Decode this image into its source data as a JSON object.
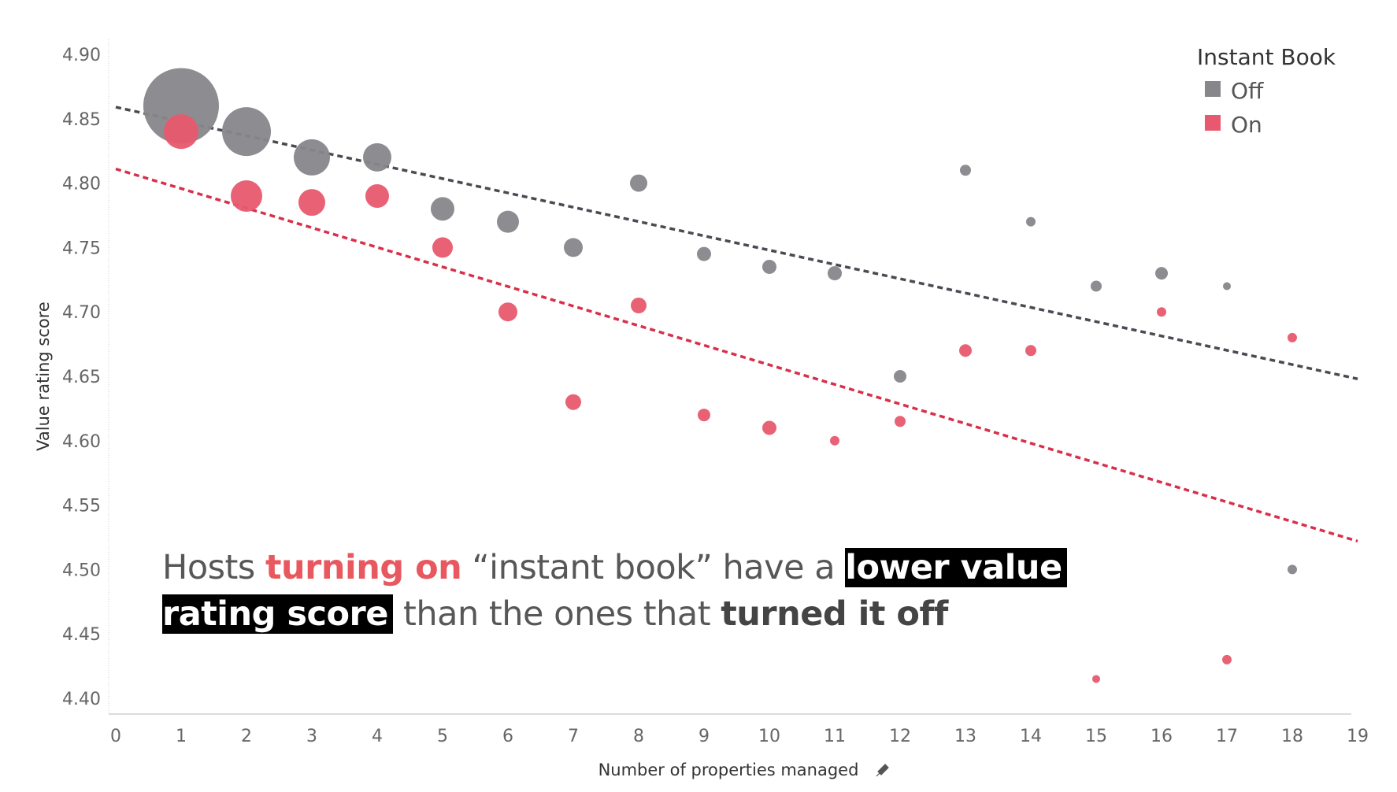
{
  "chart_data": {
    "type": "scatter",
    "title": "",
    "xlabel": "Number of properties managed",
    "ylabel": "Value rating score",
    "xlim": [
      0,
      19
    ],
    "ylim": [
      4.4,
      4.9
    ],
    "x_ticks": [
      "0",
      "1",
      "2",
      "3",
      "4",
      "5",
      "6",
      "7",
      "8",
      "9",
      "10",
      "11",
      "12",
      "13",
      "14",
      "15",
      "16",
      "17",
      "18",
      "19"
    ],
    "y_ticks": [
      "4.40",
      "4.45",
      "4.50",
      "4.55",
      "4.60",
      "4.65",
      "4.70",
      "4.75",
      "4.80",
      "4.85",
      "4.90"
    ],
    "grid": false,
    "legend": {
      "title": "Instant Book",
      "position": "top-right"
    },
    "series": [
      {
        "name": "Off",
        "color": "#86868b",
        "trend_color": "#4a4a52",
        "trendline": [
          [
            0,
            4.859
          ],
          [
            19,
            4.648
          ]
        ],
        "points": [
          {
            "x": 1,
            "y": 4.86,
            "size": 48
          },
          {
            "x": 2,
            "y": 4.84,
            "size": 31
          },
          {
            "x": 3,
            "y": 4.82,
            "size": 23
          },
          {
            "x": 4,
            "y": 4.82,
            "size": 18
          },
          {
            "x": 5,
            "y": 4.78,
            "size": 15
          },
          {
            "x": 6,
            "y": 4.77,
            "size": 14
          },
          {
            "x": 7,
            "y": 4.75,
            "size": 12
          },
          {
            "x": 8,
            "y": 4.8,
            "size": 11
          },
          {
            "x": 9,
            "y": 4.745,
            "size": 9
          },
          {
            "x": 10,
            "y": 4.735,
            "size": 9
          },
          {
            "x": 11,
            "y": 4.73,
            "size": 9
          },
          {
            "x": 12,
            "y": 4.65,
            "size": 8
          },
          {
            "x": 13,
            "y": 4.81,
            "size": 7
          },
          {
            "x": 14,
            "y": 4.77,
            "size": 6
          },
          {
            "x": 15,
            "y": 4.72,
            "size": 7
          },
          {
            "x": 16,
            "y": 4.73,
            "size": 8
          },
          {
            "x": 17,
            "y": 4.72,
            "size": 5
          },
          {
            "x": 18,
            "y": 4.5,
            "size": 6
          }
        ]
      },
      {
        "name": "On",
        "color": "#e8586e",
        "trend_color": "#d8304a",
        "trendline": [
          [
            0,
            4.811
          ],
          [
            19,
            4.522
          ]
        ],
        "points": [
          {
            "x": 1,
            "y": 4.84,
            "size": 22
          },
          {
            "x": 2,
            "y": 4.79,
            "size": 20
          },
          {
            "x": 3,
            "y": 4.785,
            "size": 17
          },
          {
            "x": 4,
            "y": 4.79,
            "size": 15
          },
          {
            "x": 5,
            "y": 4.75,
            "size": 13
          },
          {
            "x": 6,
            "y": 4.7,
            "size": 12
          },
          {
            "x": 7,
            "y": 4.63,
            "size": 10
          },
          {
            "x": 8,
            "y": 4.705,
            "size": 10
          },
          {
            "x": 9,
            "y": 4.62,
            "size": 8
          },
          {
            "x": 10,
            "y": 4.61,
            "size": 9
          },
          {
            "x": 11,
            "y": 4.6,
            "size": 6
          },
          {
            "x": 12,
            "y": 4.615,
            "size": 7
          },
          {
            "x": 13,
            "y": 4.67,
            "size": 8
          },
          {
            "x": 14,
            "y": 4.67,
            "size": 7
          },
          {
            "x": 15,
            "y": 4.415,
            "size": 5
          },
          {
            "x": 16,
            "y": 4.7,
            "size": 6
          },
          {
            "x": 17,
            "y": 4.43,
            "size": 6
          },
          {
            "x": 18,
            "y": 4.68,
            "size": 6
          }
        ]
      }
    ]
  },
  "annotation": {
    "part1": "Hosts ",
    "part2": "turning on",
    "part3": " “instant book” have a ",
    "part4": "lower value",
    "part5": "rating score",
    "part6": " than the ones that ",
    "part7": "turned it off"
  },
  "pin_icon": "pin-icon"
}
